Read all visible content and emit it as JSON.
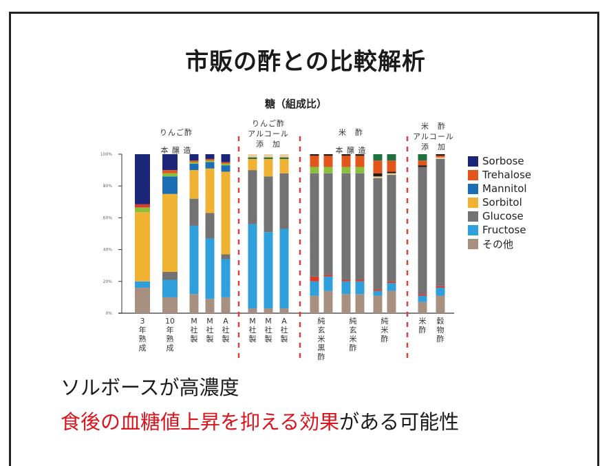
{
  "slide": {
    "title": "市販の酢との比較解析",
    "caption_line1": "ソルボースが高濃度",
    "caption_line2_highlight": "食後の血糖値上昇を抑える効果",
    "caption_line2_rest": "がある可能性",
    "highlight_color": "#d9141c"
  },
  "chart_data": {
    "type": "bar",
    "stacked": true,
    "title": "糖（組成比）",
    "ylabel": "",
    "xlabel": "",
    "ylim": [
      0,
      100
    ],
    "yticks": [
      "0%",
      "20%",
      "40%",
      "60%",
      "80%",
      "100%"
    ],
    "ytick_values": [
      0,
      20,
      40,
      60,
      80,
      100
    ],
    "legend_position": "right",
    "legend": [
      {
        "name": "Sorbose",
        "color": "#1c2678"
      },
      {
        "name": "Trehalose",
        "color": "#e2561e"
      },
      {
        "name": "Mannitol",
        "color": "#1b6db4"
      },
      {
        "name": "Sorbitol",
        "color": "#f0b232"
      },
      {
        "name": "Glucose",
        "color": "#737373"
      },
      {
        "name": "Fructose",
        "color": "#2fa0dc"
      },
      {
        "name": "その他",
        "color": "#a89080"
      }
    ],
    "extra_colors": {
      "minor-green": "#8cc03c",
      "minor-red": "#d93a2a",
      "minor-darkgreen": "#1e7040",
      "minor-black": "#2a1a10",
      "minor-tan": "#e8d0a0"
    },
    "groups": [
      {
        "label_lines": [
          "りんご酢",
          "本 醸 造"
        ],
        "bars": [
          0,
          1,
          2,
          3,
          4
        ]
      },
      {
        "label_lines": [
          "りんご酢",
          "アルコール",
          "添　加"
        ],
        "bars": [
          5,
          6,
          7
        ]
      },
      {
        "label_lines": [
          "米　酢",
          "本 醸 造"
        ],
        "bars": [
          8,
          9,
          10,
          11,
          12,
          13
        ]
      },
      {
        "label_lines": [
          "米　酢",
          "アルコール",
          "添　加"
        ],
        "bars": [
          14,
          15
        ]
      }
    ],
    "category_labels": [
      {
        "text": [
          "3",
          "年",
          "熟",
          "成"
        ],
        "bars": [
          0
        ]
      },
      {
        "text": [
          "10",
          "年",
          "熟",
          "成"
        ],
        "bars": [
          1
        ]
      },
      {
        "text": [
          "M",
          "社",
          "製"
        ],
        "bars": [
          2
        ]
      },
      {
        "text": [
          "M",
          "社",
          "製"
        ],
        "bars": [
          3
        ]
      },
      {
        "text": [
          "A",
          "社",
          "製"
        ],
        "bars": [
          4
        ]
      },
      {
        "text": [
          "M",
          "社",
          "製"
        ],
        "bars": [
          5
        ]
      },
      {
        "text": [
          "M",
          "社",
          "製"
        ],
        "bars": [
          6
        ]
      },
      {
        "text": [
          "A",
          "社",
          "製"
        ],
        "bars": [
          7
        ]
      },
      {
        "text": [
          "純",
          "玄",
          "米",
          "黒",
          "酢"
        ],
        "bars": [
          8,
          9
        ]
      },
      {
        "text": [
          "純",
          "玄",
          "米",
          "酢"
        ],
        "bars": [
          10,
          11
        ]
      },
      {
        "text": [
          "純",
          "米",
          "酢"
        ],
        "bars": [
          12,
          13
        ]
      },
      {
        "text": [
          "米",
          "酢"
        ],
        "bars": [
          14
        ]
      },
      {
        "text": [
          "穀",
          "物",
          "酢"
        ],
        "bars": [
          15
        ]
      }
    ],
    "bars": [
      {
        "segments": [
          [
            "その他",
            16
          ],
          [
            "Fructose",
            4
          ],
          [
            "Sorbitol",
            43.5
          ],
          [
            "minor-green",
            3
          ],
          [
            "minor-red",
            2
          ],
          [
            "Sorbose",
            31.5
          ]
        ]
      },
      {
        "segments": [
          [
            "その他",
            10
          ],
          [
            "Fructose",
            11
          ],
          [
            "Glucose",
            5
          ],
          [
            "Sorbitol",
            49
          ],
          [
            "Mannitol",
            11
          ],
          [
            "minor-green",
            2
          ],
          [
            "Trehalose",
            2
          ],
          [
            "Sorbose",
            10
          ]
        ]
      },
      {
        "segments": [
          [
            "その他",
            12
          ],
          [
            "Fructose",
            43
          ],
          [
            "Glucose",
            17
          ],
          [
            "Sorbitol",
            18
          ],
          [
            "Mannitol",
            4
          ],
          [
            "minor-green",
            1
          ],
          [
            "Trehalose",
            1
          ],
          [
            "Sorbose",
            4
          ]
        ]
      },
      {
        "segments": [
          [
            "その他",
            9
          ],
          [
            "Fructose",
            38
          ],
          [
            "Glucose",
            16
          ],
          [
            "Sorbitol",
            28
          ],
          [
            "Mannitol",
            4
          ],
          [
            "minor-green",
            1
          ],
          [
            "Trehalose",
            1
          ],
          [
            "Sorbose",
            3
          ]
        ]
      },
      {
        "segments": [
          [
            "その他",
            10
          ],
          [
            "Fructose",
            24
          ],
          [
            "Glucose",
            3
          ],
          [
            "Sorbitol",
            52
          ],
          [
            "Mannitol",
            4
          ],
          [
            "minor-green",
            1
          ],
          [
            "Trehalose",
            1
          ],
          [
            "Sorbose",
            5
          ]
        ]
      },
      {
        "segments": [
          [
            "その他",
            3
          ],
          [
            "Fructose",
            53
          ],
          [
            "Glucose",
            34
          ],
          [
            "Sorbitol",
            7
          ],
          [
            "minor-darkgreen",
            1
          ],
          [
            "minor-tan",
            2
          ]
        ]
      },
      {
        "segments": [
          [
            "その他",
            3
          ],
          [
            "Fructose",
            48
          ],
          [
            "Glucose",
            35
          ],
          [
            "Sorbitol",
            11
          ],
          [
            "minor-darkgreen",
            1
          ],
          [
            "minor-tan",
            2
          ]
        ]
      },
      {
        "segments": [
          [
            "その他",
            3
          ],
          [
            "Fructose",
            50
          ],
          [
            "Glucose",
            35
          ],
          [
            "Sorbitol",
            9
          ],
          [
            "minor-darkgreen",
            1
          ],
          [
            "minor-tan",
            2
          ]
        ]
      },
      {
        "segments": [
          [
            "その他",
            11
          ],
          [
            "Fructose",
            9
          ],
          [
            "minor-red",
            3
          ],
          [
            "Glucose",
            65
          ],
          [
            "minor-green",
            4
          ],
          [
            "Trehalose",
            7
          ],
          [
            "minor-black",
            1
          ]
        ]
      },
      {
        "segments": [
          [
            "その他",
            14
          ],
          [
            "Fructose",
            9
          ],
          [
            "minor-red",
            1
          ],
          [
            "Glucose",
            64
          ],
          [
            "minor-green",
            4
          ],
          [
            "Trehalose",
            7
          ],
          [
            "minor-black",
            1
          ]
        ]
      },
      {
        "segments": [
          [
            "その他",
            12
          ],
          [
            "Fructose",
            8
          ],
          [
            "minor-red",
            1
          ],
          [
            "Glucose",
            67
          ],
          [
            "minor-green",
            4
          ],
          [
            "Trehalose",
            7
          ],
          [
            "minor-black",
            1
          ]
        ]
      },
      {
        "segments": [
          [
            "その他",
            12
          ],
          [
            "Fructose",
            8
          ],
          [
            "minor-red",
            1
          ],
          [
            "Glucose",
            67
          ],
          [
            "minor-green",
            4
          ],
          [
            "Trehalose",
            7
          ],
          [
            "minor-black",
            1
          ]
        ]
      },
      {
        "segments": [
          [
            "その他",
            11
          ],
          [
            "Fructose",
            3
          ],
          [
            "minor-red",
            1
          ],
          [
            "Glucose",
            70
          ],
          [
            "minor-tan",
            1
          ],
          [
            "minor-black",
            2
          ],
          [
            "Trehalose",
            8
          ],
          [
            "minor-darkgreen",
            4
          ]
        ]
      },
      {
        "segments": [
          [
            "その他",
            14
          ],
          [
            "Fructose",
            5
          ],
          [
            "minor-red",
            1
          ],
          [
            "Glucose",
            67
          ],
          [
            "minor-tan",
            1
          ],
          [
            "minor-black",
            1
          ],
          [
            "Trehalose",
            7
          ],
          [
            "minor-darkgreen",
            4
          ]
        ]
      },
      {
        "segments": [
          [
            "その他",
            7
          ],
          [
            "Fructose",
            4
          ],
          [
            "minor-red",
            1
          ],
          [
            "Glucose",
            80
          ],
          [
            "minor-black",
            1
          ],
          [
            "Trehalose",
            3
          ],
          [
            "minor-darkgreen",
            4
          ]
        ]
      },
      {
        "segments": [
          [
            "その他",
            11
          ],
          [
            "Fructose",
            5
          ],
          [
            "minor-red",
            1
          ],
          [
            "Glucose",
            80
          ],
          [
            "minor-tan",
            1
          ],
          [
            "Trehalose",
            1
          ],
          [
            "minor-black",
            1
          ]
        ]
      }
    ]
  }
}
